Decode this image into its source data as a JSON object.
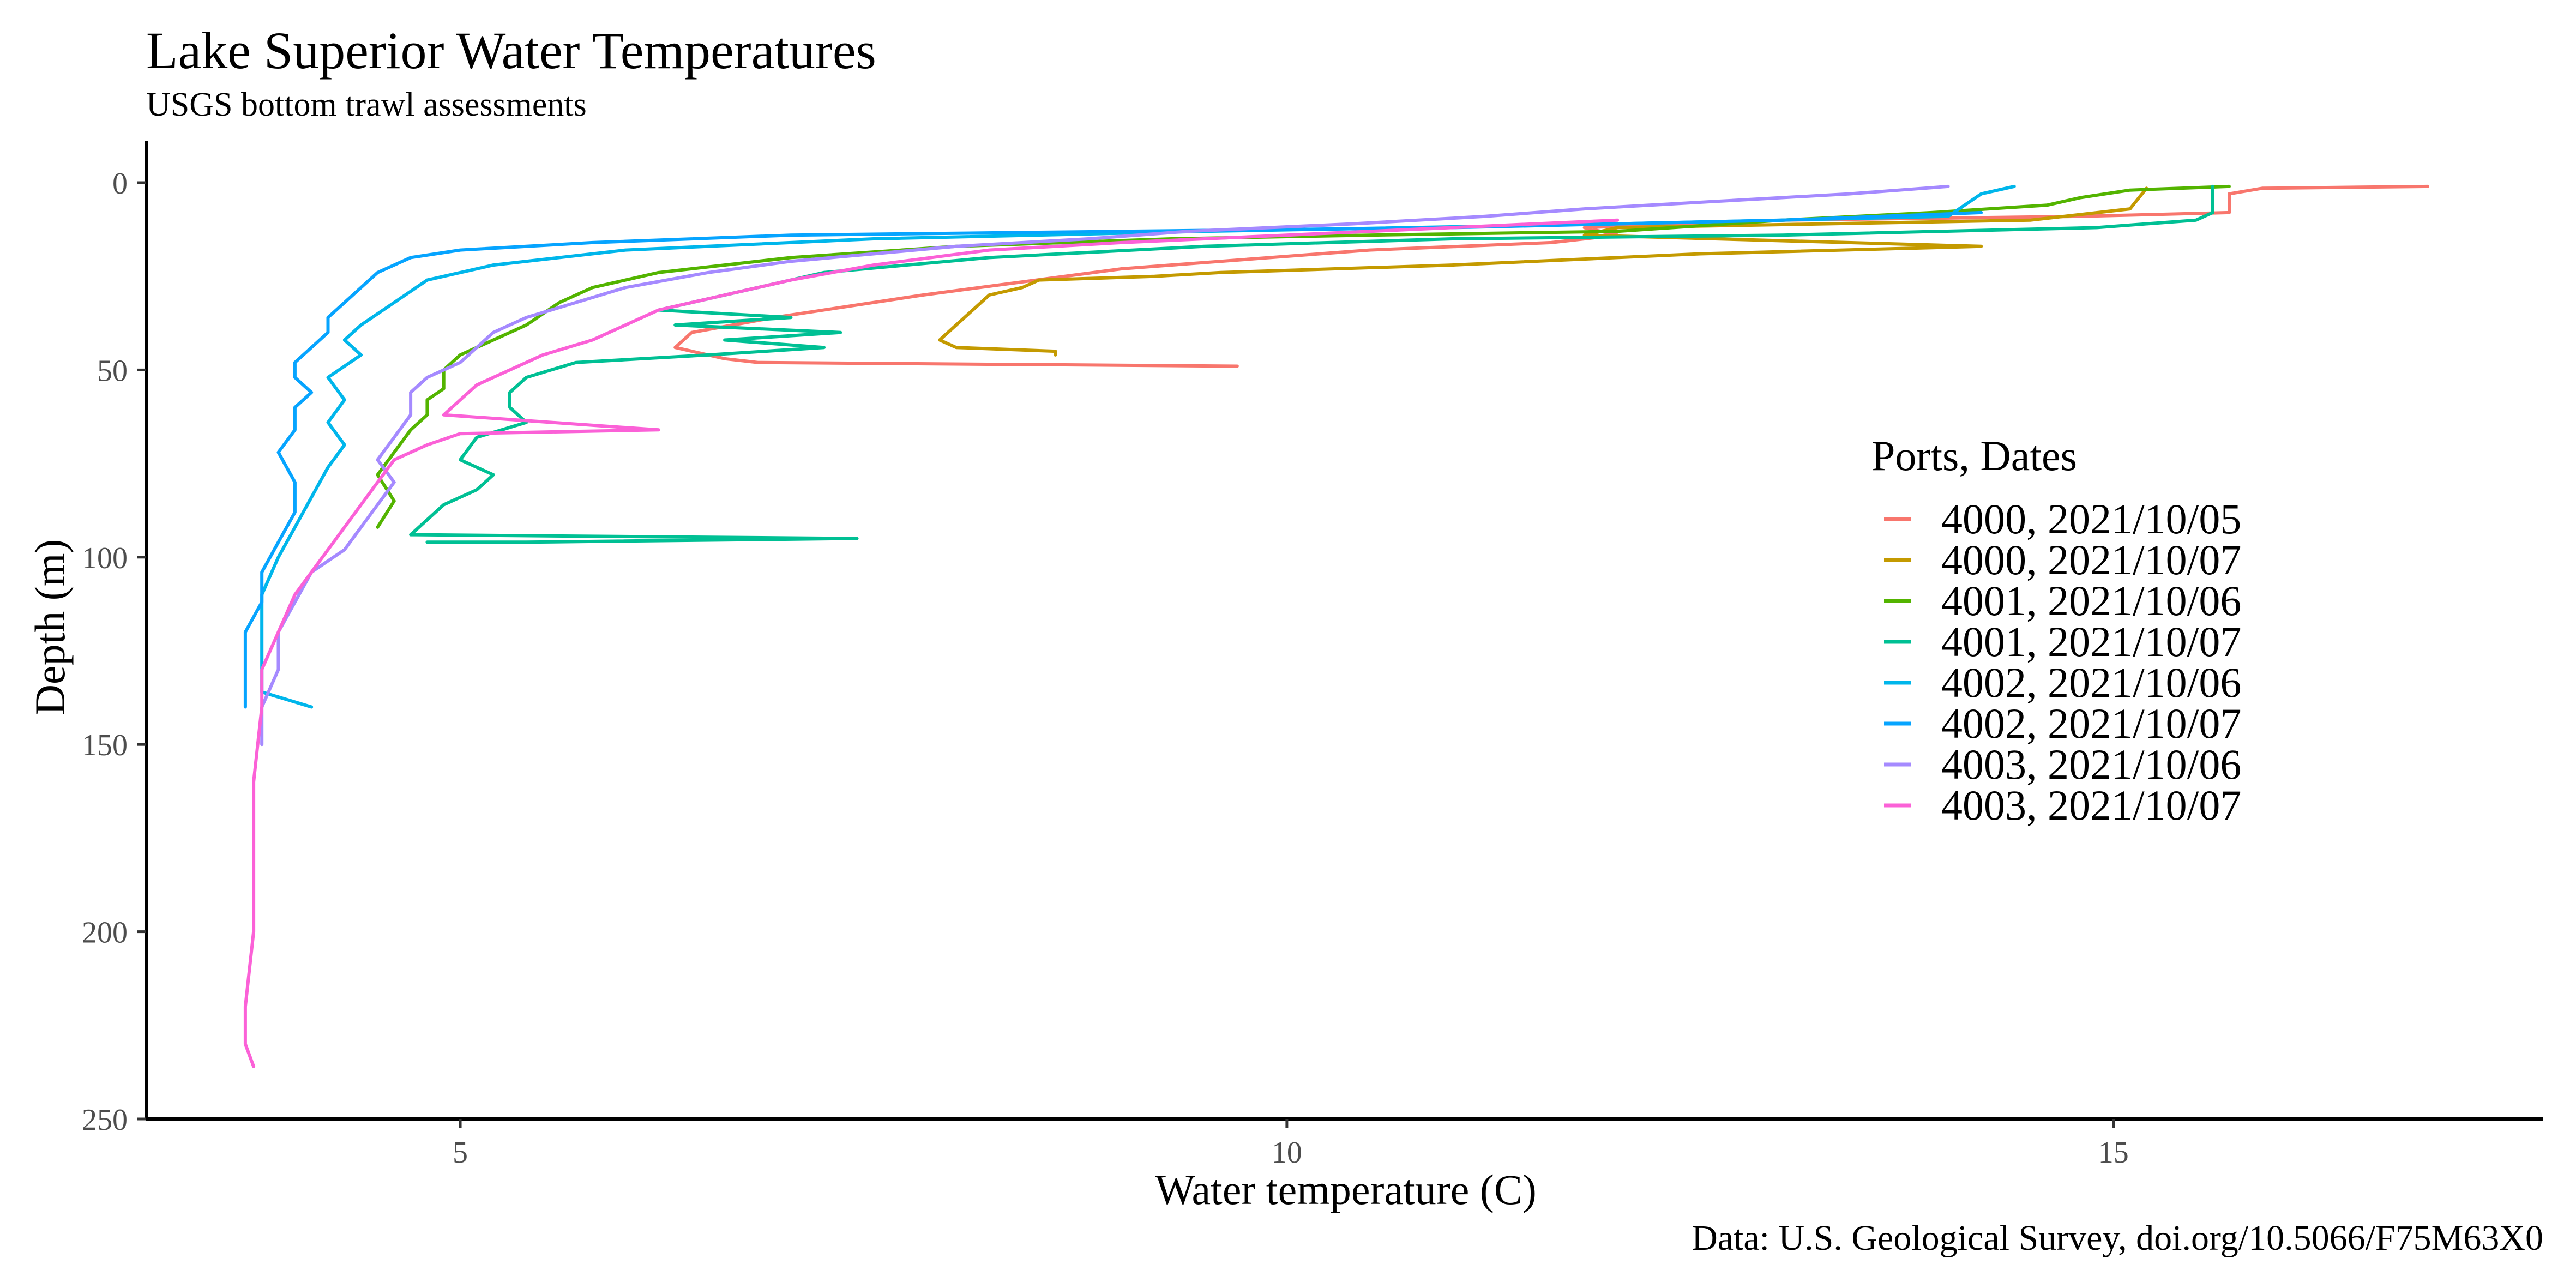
{
  "chart_data": {
    "type": "line",
    "title": "Lake Superior Water Temperatures",
    "subtitle": "USGS bottom trawl assessments",
    "caption": "Data: U.S. Geological Survey, doi.org/10.5066/F75M63X0",
    "xlabel": "Water temperature (C)",
    "ylabel": "Depth (m)",
    "xlim": [
      3.1,
      17.6
    ],
    "ylim": [
      0,
      250
    ],
    "y_reversed": true,
    "x_ticks": [
      5,
      10,
      15
    ],
    "y_ticks": [
      0,
      50,
      100,
      150,
      200,
      250
    ],
    "grid": false,
    "legend": {
      "title": "Ports, Dates",
      "position": "right"
    },
    "series": [
      {
        "name": "4000, 2021/10/05",
        "color": "#F8766D",
        "points": [
          [
            16.9,
            1
          ],
          [
            15.9,
            1.5
          ],
          [
            15.7,
            3
          ],
          [
            15.7,
            8
          ],
          [
            14.8,
            9
          ],
          [
            13.0,
            10
          ],
          [
            11.8,
            12
          ],
          [
            12.0,
            14
          ],
          [
            11.6,
            16
          ],
          [
            10.5,
            18
          ],
          [
            9.0,
            23
          ],
          [
            7.8,
            30
          ],
          [
            6.9,
            36
          ],
          [
            6.4,
            40
          ],
          [
            6.3,
            44
          ],
          [
            6.6,
            47
          ],
          [
            6.8,
            48
          ],
          [
            9.7,
            49
          ]
        ]
      },
      {
        "name": "4000, 2021/10/07",
        "color": "#C49A00",
        "points": [
          [
            15.2,
            1.5
          ],
          [
            15.1,
            7
          ],
          [
            14.5,
            10
          ],
          [
            12.0,
            12
          ],
          [
            11.8,
            14
          ],
          [
            14.2,
            17
          ],
          [
            12.5,
            19
          ],
          [
            11.0,
            22
          ],
          [
            9.6,
            24
          ],
          [
            9.2,
            25
          ],
          [
            8.5,
            26
          ],
          [
            8.4,
            28
          ],
          [
            8.2,
            30
          ],
          [
            8.1,
            34
          ],
          [
            8.0,
            38
          ],
          [
            7.9,
            42
          ],
          [
            8.0,
            44
          ],
          [
            8.6,
            45
          ],
          [
            8.6,
            46
          ]
        ]
      },
      {
        "name": "4001, 2021/10/06",
        "color": "#53B400",
        "points": [
          [
            15.7,
            1
          ],
          [
            15.1,
            2
          ],
          [
            14.8,
            4
          ],
          [
            14.6,
            6
          ],
          [
            13.9,
            8
          ],
          [
            13.0,
            10
          ],
          [
            12.0,
            13
          ],
          [
            10.5,
            14
          ],
          [
            9.3,
            15
          ],
          [
            8.0,
            17
          ],
          [
            7.0,
            20
          ],
          [
            6.2,
            24
          ],
          [
            5.8,
            28
          ],
          [
            5.6,
            32
          ],
          [
            5.4,
            38
          ],
          [
            5.2,
            42
          ],
          [
            5.0,
            46
          ],
          [
            4.9,
            50
          ],
          [
            4.9,
            55
          ],
          [
            4.8,
            58
          ],
          [
            4.8,
            62
          ],
          [
            4.7,
            66
          ],
          [
            4.6,
            72
          ],
          [
            4.5,
            78
          ],
          [
            4.6,
            85
          ],
          [
            4.5,
            92
          ]
        ]
      },
      {
        "name": "4001, 2021/10/07",
        "color": "#00C094",
        "points": [
          [
            15.6,
            1
          ],
          [
            15.6,
            8
          ],
          [
            15.5,
            10
          ],
          [
            14.9,
            12
          ],
          [
            13.0,
            14
          ],
          [
            11.0,
            15
          ],
          [
            9.5,
            17
          ],
          [
            8.2,
            20
          ],
          [
            7.2,
            24
          ],
          [
            6.8,
            28
          ],
          [
            6.4,
            32
          ],
          [
            6.2,
            34
          ],
          [
            7.0,
            36
          ],
          [
            6.3,
            38
          ],
          [
            7.3,
            40
          ],
          [
            6.6,
            42
          ],
          [
            7.2,
            44
          ],
          [
            6.5,
            46
          ],
          [
            5.7,
            48
          ],
          [
            5.4,
            52
          ],
          [
            5.3,
            56
          ],
          [
            5.3,
            60
          ],
          [
            5.4,
            64
          ],
          [
            5.1,
            68
          ],
          [
            5.0,
            74
          ],
          [
            5.2,
            78
          ],
          [
            5.1,
            82
          ],
          [
            4.9,
            86
          ],
          [
            4.8,
            90
          ],
          [
            4.7,
            94
          ],
          [
            7.4,
            95
          ],
          [
            5.4,
            96
          ],
          [
            4.8,
            96
          ]
        ]
      },
      {
        "name": "4002, 2021/10/06",
        "color": "#00B6EB",
        "points": [
          [
            14.4,
            1
          ],
          [
            14.2,
            3
          ],
          [
            14.1,
            6
          ],
          [
            14.0,
            9
          ],
          [
            12.0,
            11
          ],
          [
            9.5,
            13
          ],
          [
            7.5,
            15
          ],
          [
            6.0,
            18
          ],
          [
            5.2,
            22
          ],
          [
            4.8,
            26
          ],
          [
            4.6,
            32
          ],
          [
            4.4,
            38
          ],
          [
            4.3,
            42
          ],
          [
            4.4,
            46
          ],
          [
            4.2,
            52
          ],
          [
            4.3,
            58
          ],
          [
            4.2,
            64
          ],
          [
            4.3,
            70
          ],
          [
            4.2,
            76
          ],
          [
            4.1,
            84
          ],
          [
            4.0,
            92
          ],
          [
            3.9,
            100
          ],
          [
            3.8,
            110
          ],
          [
            3.8,
            120
          ],
          [
            3.8,
            130
          ],
          [
            3.8,
            136
          ],
          [
            4.1,
            140
          ]
        ]
      },
      {
        "name": "4002, 2021/10/07",
        "color": "#06A4FF",
        "points": [
          [
            14.2,
            8
          ],
          [
            13.0,
            10
          ],
          [
            11.0,
            12
          ],
          [
            9.0,
            13
          ],
          [
            7.0,
            14
          ],
          [
            5.8,
            16
          ],
          [
            5.0,
            18
          ],
          [
            4.7,
            20
          ],
          [
            4.5,
            24
          ],
          [
            4.4,
            28
          ],
          [
            4.3,
            32
          ],
          [
            4.2,
            36
          ],
          [
            4.2,
            40
          ],
          [
            4.1,
            44
          ],
          [
            4.0,
            48
          ],
          [
            4.0,
            52
          ],
          [
            4.1,
            56
          ],
          [
            4.0,
            60
          ],
          [
            4.0,
            66
          ],
          [
            3.9,
            72
          ],
          [
            4.0,
            80
          ],
          [
            4.0,
            88
          ],
          [
            3.9,
            96
          ],
          [
            3.8,
            104
          ],
          [
            3.8,
            112
          ],
          [
            3.7,
            120
          ],
          [
            3.7,
            130
          ],
          [
            3.7,
            140
          ]
        ]
      },
      {
        "name": "4003, 2021/10/06",
        "color": "#A58AFF",
        "points": [
          [
            14.0,
            1
          ],
          [
            13.4,
            3
          ],
          [
            12.6,
            5
          ],
          [
            11.8,
            7
          ],
          [
            11.2,
            9
          ],
          [
            10.4,
            11
          ],
          [
            9.4,
            13
          ],
          [
            8.8,
            15
          ],
          [
            8.0,
            17
          ],
          [
            7.5,
            19
          ],
          [
            7.0,
            21
          ],
          [
            6.5,
            24
          ],
          [
            6.0,
            28
          ],
          [
            5.7,
            32
          ],
          [
            5.4,
            36
          ],
          [
            5.2,
            40
          ],
          [
            5.1,
            44
          ],
          [
            5.0,
            48
          ],
          [
            4.8,
            52
          ],
          [
            4.7,
            56
          ],
          [
            4.7,
            62
          ],
          [
            4.6,
            68
          ],
          [
            4.5,
            74
          ],
          [
            4.6,
            80
          ],
          [
            4.5,
            86
          ],
          [
            4.4,
            92
          ],
          [
            4.3,
            98
          ],
          [
            4.1,
            104
          ],
          [
            4.0,
            112
          ],
          [
            3.9,
            120
          ],
          [
            3.9,
            130
          ],
          [
            3.8,
            140
          ],
          [
            3.8,
            150
          ]
        ]
      },
      {
        "name": "4003, 2021/10/07",
        "color": "#FB61D7",
        "points": [
          [
            12.0,
            10
          ],
          [
            11.0,
            12
          ],
          [
            10.0,
            14
          ],
          [
            9.0,
            16
          ],
          [
            8.2,
            18
          ],
          [
            7.5,
            22
          ],
          [
            7.0,
            26
          ],
          [
            6.6,
            30
          ],
          [
            6.2,
            34
          ],
          [
            6.0,
            38
          ],
          [
            5.8,
            42
          ],
          [
            5.5,
            46
          ],
          [
            5.3,
            50
          ],
          [
            5.1,
            54
          ],
          [
            5.0,
            58
          ],
          [
            4.9,
            62
          ],
          [
            6.2,
            66
          ],
          [
            5.0,
            67
          ],
          [
            4.8,
            70
          ],
          [
            4.6,
            74
          ],
          [
            4.5,
            80
          ],
          [
            4.4,
            86
          ],
          [
            4.3,
            92
          ],
          [
            4.2,
            98
          ],
          [
            4.1,
            104
          ],
          [
            4.0,
            110
          ],
          [
            3.9,
            120
          ],
          [
            3.8,
            130
          ],
          [
            3.8,
            140
          ],
          [
            3.75,
            160
          ],
          [
            3.75,
            180
          ],
          [
            3.75,
            200
          ],
          [
            3.7,
            220
          ],
          [
            3.7,
            230
          ],
          [
            3.75,
            236
          ]
        ]
      }
    ]
  }
}
